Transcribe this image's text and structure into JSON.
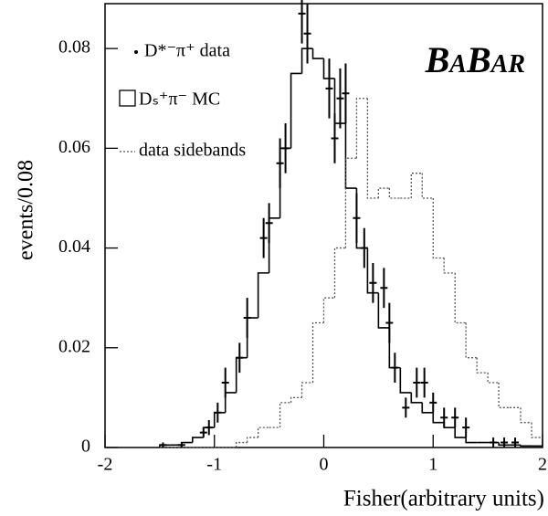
{
  "chart_data": {
    "type": "histogram",
    "xlabel": "Fisher(arbitrary units)",
    "ylabel": "events/0.08",
    "logo": "BaBar",
    "xlim": [
      -2,
      2
    ],
    "xticks": [
      -2,
      -1,
      0,
      1,
      2
    ],
    "ylim": [
      0,
      0.089
    ],
    "yticks": [
      0,
      0.02,
      0.04,
      0.06,
      0.08
    ],
    "bins": [
      -1.5,
      -1.4,
      -1.3,
      -1.2,
      -1.1,
      -1.0,
      -0.9,
      -0.8,
      -0.7,
      -0.6,
      -0.5,
      -0.4,
      -0.3,
      -0.2,
      -0.1,
      0.0,
      0.1,
      0.2,
      0.3,
      0.4,
      0.5,
      0.6,
      0.7,
      0.8,
      0.9,
      1.0,
      1.1,
      1.2,
      1.3,
      1.4,
      1.5,
      1.6,
      1.7,
      1.8,
      1.9,
      2.0
    ],
    "series": [
      {
        "name": "Dₛ⁺π⁻ MC",
        "color": "#000000",
        "style": "solid",
        "values": [
          0.0005,
          0.0005,
          0.001,
          0.002,
          0.004,
          0.007,
          0.011,
          0.018,
          0.026,
          0.035,
          0.046,
          0.06,
          0.075,
          0.08,
          0.078,
          0.074,
          0.065,
          0.052,
          0.04,
          0.031,
          0.024,
          0.016,
          0.011,
          0.009,
          0.007,
          0.005,
          0.004,
          0.002,
          0.001,
          0.001,
          0.001,
          0.0005,
          0.0005,
          0.0003,
          0.0003
        ]
      },
      {
        "name": "data sidebands",
        "color": "#555555",
        "style": "dotted",
        "values": [
          0,
          0,
          0,
          0,
          0,
          0,
          0,
          0.001,
          0.002,
          0.004,
          0.004,
          0.009,
          0.01,
          0.013,
          0.025,
          0.03,
          0.04,
          0.058,
          0.07,
          0.05,
          0.052,
          0.05,
          0.05,
          0.055,
          0.05,
          0.038,
          0.035,
          0.025,
          0.018,
          0.015,
          0.013,
          0.008,
          0.008,
          0.005,
          0.002
        ]
      }
    ],
    "points": {
      "name": "D*⁻π⁺ data",
      "color": "#000000",
      "x": [
        -1.47,
        -1.3,
        -1.1,
        -1.05,
        -0.97,
        -0.9,
        -0.77,
        -0.7,
        -0.55,
        -0.5,
        -0.4,
        -0.35,
        -0.2,
        -0.15,
        0.05,
        0.1,
        0.15,
        0.2,
        0.3,
        0.37,
        0.45,
        0.55,
        0.6,
        0.65,
        0.75,
        0.85,
        0.92,
        1.0,
        1.1,
        1.2,
        1.3,
        1.55,
        1.65,
        1.75
      ],
      "values": [
        0.0005,
        0.0005,
        0.003,
        0.004,
        0.007,
        0.013,
        0.018,
        0.026,
        0.042,
        0.045,
        0.057,
        0.06,
        0.087,
        0.083,
        0.072,
        0.062,
        0.07,
        0.071,
        0.046,
        0.04,
        0.033,
        0.032,
        0.025,
        0.016,
        0.008,
        0.013,
        0.013,
        0.009,
        0.006,
        0.006,
        0.004,
        0.001,
        0.001,
        0.001
      ],
      "errors": [
        0.0005,
        0.0005,
        0.001,
        0.0015,
        0.002,
        0.003,
        0.003,
        0.004,
        0.004,
        0.004,
        0.005,
        0.005,
        0.006,
        0.006,
        0.006,
        0.005,
        0.006,
        0.006,
        0.005,
        0.004,
        0.004,
        0.004,
        0.004,
        0.003,
        0.002,
        0.003,
        0.003,
        0.002,
        0.002,
        0.002,
        0.002,
        0.001,
        0.001,
        0.001
      ]
    }
  }
}
